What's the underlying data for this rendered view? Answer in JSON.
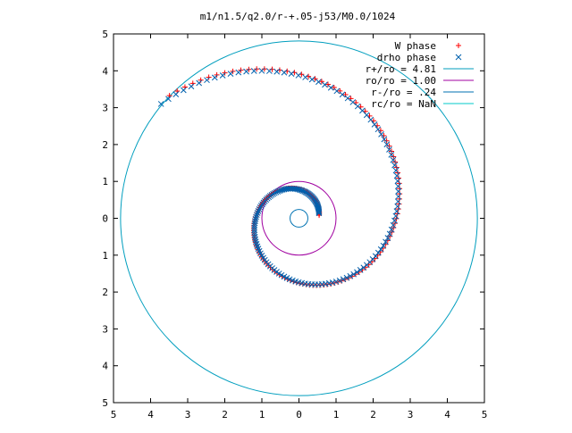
{
  "chart_data": {
    "type": "scatter",
    "title": "m1/n1.5/q2.0/r-+.05-j53/M0.0/1024",
    "xlim": [
      -5,
      5
    ],
    "ylim": [
      -5,
      5
    ],
    "xticks": [
      -5,
      -4,
      -3,
      -2,
      -1,
      0,
      1,
      2,
      3,
      4,
      5
    ],
    "yticks": [
      -5,
      -4,
      -3,
      -2,
      -1,
      0,
      1,
      2,
      3,
      4,
      5
    ],
    "xtick_labels": [
      "5",
      "4",
      "3",
      "2",
      "1",
      "0",
      "1",
      "2",
      "3",
      "4",
      "5"
    ],
    "ytick_labels": [
      "5",
      "4",
      "3",
      "2",
      "1",
      "0",
      "1",
      "2",
      "3",
      "4",
      "5"
    ],
    "grid": false,
    "legend_position": "top-right",
    "series": [
      {
        "name": "W phase",
        "marker": "plus",
        "color": "#ff0000",
        "spiral": {
          "a": 0.55,
          "b": 0.255,
          "theta_start": 0.0,
          "theta_end": 12.6,
          "n": 260,
          "rotation": 0.15
        }
      },
      {
        "name": "drho phase",
        "marker": "cross",
        "color": "#0060ad",
        "spiral": {
          "a": 0.55,
          "b": 0.255,
          "theta_start": 0.05,
          "theta_end": 12.6,
          "n": 260,
          "rotation": 0.2
        }
      }
    ],
    "circles": [
      {
        "name": "r+/ro = 4.81",
        "radius": 4.81,
        "color": "#009ebe"
      },
      {
        "name": "ro/ro = 1.00",
        "radius": 1.0,
        "color": "#a000a0"
      },
      {
        "name": "r-/ro = .24",
        "radius": 0.24,
        "color": "#0072b2"
      },
      {
        "name": "rc/ro = NaN",
        "radius": null,
        "color": "#00c8c8"
      }
    ]
  }
}
